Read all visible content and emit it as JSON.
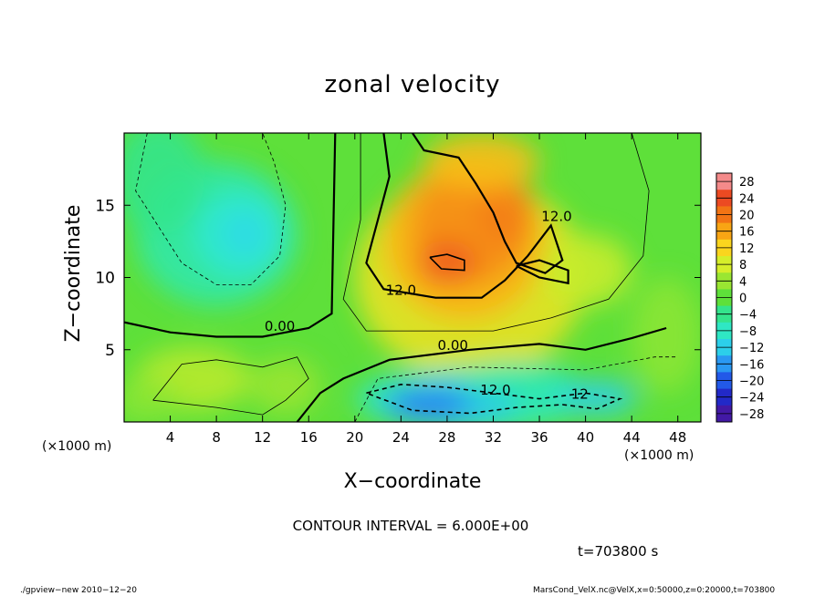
{
  "chart_data": {
    "type": "heatmap",
    "title": "zonal velocity",
    "xlabel": "X−coordinate",
    "ylabel": "Z−coordinate",
    "x_unit": "(×1000 m)",
    "y_unit": "(×1000 m)",
    "x_ticks": [
      4,
      8,
      12,
      16,
      20,
      24,
      28,
      32,
      36,
      40,
      44,
      48
    ],
    "y_ticks": [
      5,
      10,
      15
    ],
    "xlim": [
      0,
      50
    ],
    "ylim": [
      0,
      20
    ],
    "colorbar": {
      "ticks": [
        28,
        24,
        20,
        16,
        12,
        8,
        4,
        0,
        -4,
        -8,
        -12,
        -16,
        -20,
        -24,
        -28
      ],
      "tick_labels": [
        "28",
        "24",
        "20",
        "16",
        "12",
        "8",
        "4",
        "0",
        "−4",
        "−8",
        "−12",
        "−16",
        "−20",
        "−24",
        "−28"
      ],
      "range": [
        -30,
        30
      ]
    },
    "contour_labels": [
      {
        "text": "0.00",
        "x": 13.5,
        "z": 6.3
      },
      {
        "text": "0.00",
        "x": 28.5,
        "z": 5.0
      },
      {
        "text": "12.0",
        "x": 24.0,
        "z": 8.8
      },
      {
        "text": "12.0",
        "x": 37.5,
        "z": 13.9
      },
      {
        "text": "12.0",
        "x": 32.2,
        "z": 1.9
      },
      {
        "text": "12",
        "x": 39.5,
        "z": 1.6
      }
    ],
    "features": [
      {
        "name": "positive jet core",
        "x": 28,
        "z": 12,
        "value": 22
      },
      {
        "name": "upper positive region",
        "x": 31,
        "z": 15,
        "value": 16
      },
      {
        "name": "negative region upper-left",
        "x": 10,
        "z": 13,
        "value": -10
      },
      {
        "name": "negative core near surface",
        "x": 28,
        "z": 1.5,
        "value": -18
      },
      {
        "name": "negative lobe right",
        "x": 41,
        "z": 1.8,
        "value": -13
      },
      {
        "name": "weak positive near surface left",
        "x": 6,
        "z": 2.5,
        "value": 7
      }
    ]
  },
  "contour_interval_text": "CONTOUR INTERVAL = 6.000E+00",
  "time_text": "t=703800 s",
  "footer_left": "./gpview−new   2010−12−20",
  "footer_right": "MarsCond_VelX.nc@VelX,x=0:50000,z=0:20000,t=703800"
}
